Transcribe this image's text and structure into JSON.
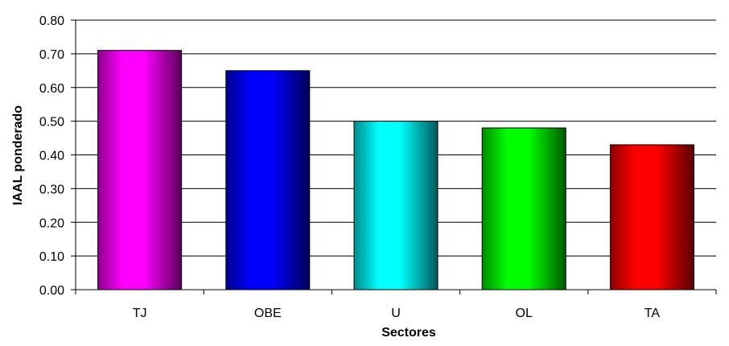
{
  "chart_data": {
    "type": "bar",
    "title": "",
    "xlabel": "Sectores",
    "ylabel": "IAAL ponderado",
    "categories": [
      "TJ",
      "OBE",
      "U",
      "OL",
      "TA"
    ],
    "values": [
      0.71,
      0.65,
      0.5,
      0.48,
      0.43
    ],
    "colors": [
      "#ff00ff",
      "#0000ff",
      "#00ffff",
      "#00ff00",
      "#ff0000"
    ],
    "ylim": [
      0,
      0.8
    ],
    "yticks": [
      "0.00",
      "0.10",
      "0.20",
      "0.30",
      "0.40",
      "0.50",
      "0.60",
      "0.70",
      "0.80"
    ],
    "grid": true,
    "legend": "none"
  }
}
